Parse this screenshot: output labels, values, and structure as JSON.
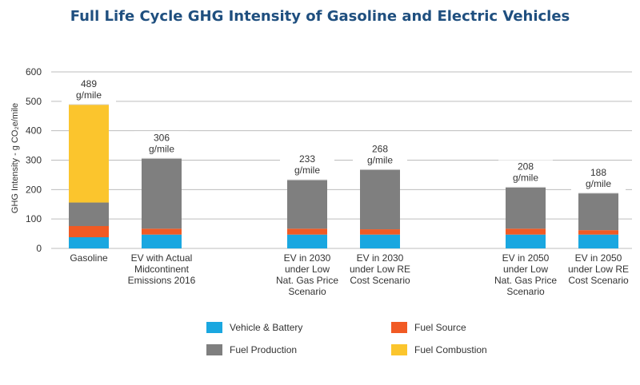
{
  "chart_data": {
    "type": "bar",
    "stacked": true,
    "title": "Full Life Cycle GHG Intensity of Gasoline and Electric Vehicles",
    "ylabel": "GHG Intensity - g CO₂e/mile",
    "ylim": [
      0,
      600
    ],
    "yticks": [
      0,
      100,
      200,
      300,
      400,
      500,
      600
    ],
    "grid": true,
    "legend_position": "bottom",
    "categories": [
      [
        "Gasoline"
      ],
      [
        "EV with Actual",
        "Midcontinent",
        "Emissions 2016"
      ],
      [
        "EV in 2030",
        "under Low",
        "Nat. Gas Price",
        "Scenario"
      ],
      [
        "EV in 2030",
        "under Low RE",
        "Cost Scenario"
      ],
      [
        "EV in 2050",
        "under Low",
        "Nat. Gas Price",
        "Scenario"
      ],
      [
        "EV in 2050",
        "under Low RE",
        "Cost Scenario"
      ]
    ],
    "slots": [
      0,
      1,
      3,
      4,
      6,
      7
    ],
    "series": [
      {
        "name": "Vehicle & Battery",
        "color": "#1aa7e0",
        "values": [
          38,
          47,
          47,
          47,
          47,
          47
        ]
      },
      {
        "name": "Fuel Source",
        "color": "#f15a24",
        "values": [
          38,
          20,
          20,
          18,
          20,
          15
        ]
      },
      {
        "name": "Fuel Production",
        "color": "#7f7f7f",
        "values": [
          80,
          239,
          166,
          203,
          141,
          126
        ]
      },
      {
        "name": "Fuel Combustion",
        "color": "#fbc52d",
        "values": [
          333,
          0,
          0,
          0,
          0,
          0
        ]
      }
    ],
    "totals": [
      [
        "489",
        "g/mile"
      ],
      [
        "306",
        "g/mile"
      ],
      [
        "233",
        "g/mile"
      ],
      [
        "268",
        "g/mile"
      ],
      [
        "208",
        "g/mile"
      ],
      [
        "188",
        "g/mile"
      ]
    ],
    "legend_order": [
      0,
      1,
      2,
      3
    ]
  },
  "colors": {
    "title": "#1f4f7f",
    "grid": "#bdbdbd",
    "text": "#333333"
  }
}
